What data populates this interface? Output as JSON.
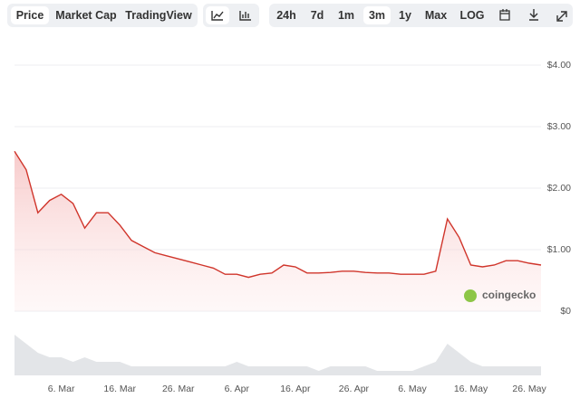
{
  "toolbar": {
    "view_tabs": [
      "Price",
      "Market Cap",
      "TradingView"
    ],
    "ranges": [
      "24h",
      "7d",
      "1m",
      "3m",
      "1y",
      "Max",
      "LOG"
    ],
    "active_tab": "Price",
    "active_range": "3m"
  },
  "watermark": "coingecko",
  "chart_data": {
    "type": "line",
    "x": [
      null,
      null,
      null,
      null,
      "6. Mar",
      null,
      null,
      null,
      null,
      "16. Mar",
      null,
      null,
      null,
      null,
      "26. Mar",
      null,
      null,
      null,
      null,
      "6. Apr",
      null,
      null,
      null,
      null,
      "16. Apr",
      null,
      null,
      null,
      null,
      "26. Apr",
      null,
      null,
      null,
      null,
      "6. May",
      null,
      null,
      null,
      null,
      "16. May",
      null,
      null,
      null,
      null,
      "26. May",
      null
    ],
    "series": [
      {
        "color": "#d0352b",
        "values": [
          2.6,
          2.3,
          1.6,
          1.8,
          1.9,
          1.75,
          1.35,
          1.6,
          1.6,
          1.4,
          1.15,
          1.05,
          0.95,
          0.9,
          0.85,
          0.8,
          0.75,
          0.7,
          0.6,
          0.6,
          0.55,
          0.6,
          0.62,
          0.75,
          0.72,
          0.62,
          0.62,
          0.63,
          0.65,
          0.65,
          0.63,
          0.62,
          0.62,
          0.6,
          0.6,
          0.6,
          0.65,
          1.5,
          1.2,
          0.75,
          0.72,
          0.75,
          0.82,
          0.82,
          0.78,
          0.75
        ]
      }
    ],
    "volume": [
      9,
      7,
      5,
      4,
      4,
      3,
      4,
      3,
      3,
      3,
      2,
      2,
      2,
      2,
      2,
      2,
      2,
      2,
      2,
      3,
      2,
      2,
      2,
      2,
      2,
      2,
      1,
      2,
      2,
      2,
      2,
      1,
      1,
      1,
      1,
      2,
      3,
      7,
      5,
      3,
      2,
      2,
      2,
      2,
      2,
      2
    ],
    "volume_color": "#e3e5e8",
    "ylim": [
      0,
      4
    ],
    "yticks": [
      {
        "value": 0,
        "label": "$0"
      },
      {
        "value": 1,
        "label": "$1.00"
      },
      {
        "value": 2,
        "label": "$2.00"
      },
      {
        "value": 3,
        "label": "$3.00"
      },
      {
        "value": 4,
        "label": "$4.00"
      }
    ],
    "grid": true
  }
}
